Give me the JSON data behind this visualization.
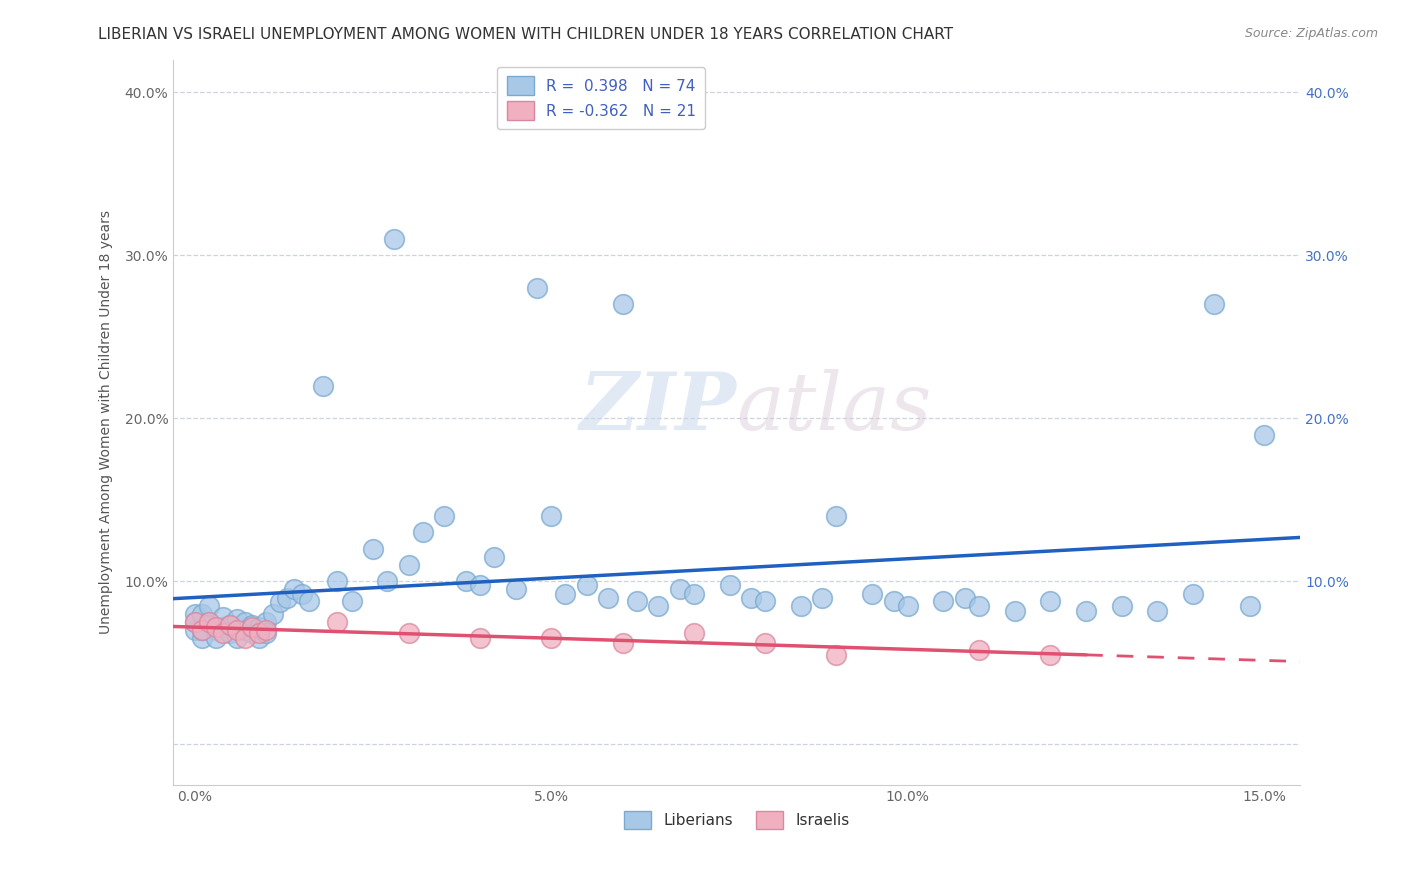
{
  "title": "LIBERIAN VS ISRAELI UNEMPLOYMENT AMONG WOMEN WITH CHILDREN UNDER 18 YEARS CORRELATION CHART",
  "source": "Source: ZipAtlas.com",
  "ylabel": "Unemployment Among Women with Children Under 18 years",
  "watermark_zip": "ZIP",
  "watermark_atlas": "atlas",
  "xlim": [
    -0.003,
    0.155
  ],
  "ylim": [
    -0.025,
    0.42
  ],
  "xticks": [
    0.0,
    0.05,
    0.1,
    0.15
  ],
  "xticklabels": [
    "0.0%",
    "5.0%",
    "10.0%",
    "15.0%"
  ],
  "yticks": [
    0.0,
    0.1,
    0.2,
    0.3,
    0.4
  ],
  "yticklabels_left": [
    "",
    "10.0%",
    "20.0%",
    "30.0%",
    "40.0%"
  ],
  "yticklabels_right": [
    "",
    "10.0%",
    "20.0%",
    "30.0%",
    "40.0%"
  ],
  "liberian_color": "#a8c8e8",
  "liberian_edge": "#7aaad0",
  "israeli_color": "#f0b0c0",
  "israeli_edge": "#d888a0",
  "trend_liberian_color": "#2060c0",
  "trend_israeli_color": "#e05070",
  "liberian_R": 0.398,
  "israeli_R": -0.362,
  "liberian_N": 74,
  "israeli_N": 21,
  "bottom_labels": [
    "Liberians",
    "Israelis"
  ],
  "grid_color": "#c8d0dc",
  "background_color": "#ffffff",
  "title_fontsize": 11,
  "axis_label_fontsize": 10,
  "tick_fontsize": 10,
  "legend_fontsize": 11,
  "liberian_x": [
    0.0,
    0.0,
    0.0,
    0.001,
    0.001,
    0.001,
    0.002,
    0.002,
    0.003,
    0.003,
    0.004,
    0.004,
    0.005,
    0.005,
    0.006,
    0.006,
    0.007,
    0.007,
    0.008,
    0.008,
    0.009,
    0.009,
    0.01,
    0.01,
    0.011,
    0.012,
    0.013,
    0.014,
    0.015,
    0.016,
    0.018,
    0.02,
    0.022,
    0.025,
    0.027,
    0.028,
    0.03,
    0.032,
    0.035,
    0.038,
    0.04,
    0.042,
    0.045,
    0.048,
    0.05,
    0.052,
    0.055,
    0.058,
    0.06,
    0.062,
    0.065,
    0.068,
    0.07,
    0.075,
    0.078,
    0.08,
    0.085,
    0.088,
    0.09,
    0.095,
    0.098,
    0.1,
    0.105,
    0.108,
    0.11,
    0.115,
    0.12,
    0.125,
    0.13,
    0.135,
    0.14,
    0.143,
    0.148,
    0.15
  ],
  "liberian_y": [
    0.07,
    0.08,
    0.075,
    0.065,
    0.07,
    0.08,
    0.075,
    0.085,
    0.07,
    0.065,
    0.072,
    0.078,
    0.068,
    0.073,
    0.077,
    0.065,
    0.07,
    0.075,
    0.068,
    0.073,
    0.065,
    0.072,
    0.075,
    0.068,
    0.08,
    0.087,
    0.09,
    0.095,
    0.092,
    0.088,
    0.22,
    0.1,
    0.088,
    0.12,
    0.1,
    0.31,
    0.11,
    0.13,
    0.14,
    0.1,
    0.098,
    0.115,
    0.095,
    0.28,
    0.14,
    0.092,
    0.098,
    0.09,
    0.27,
    0.088,
    0.085,
    0.095,
    0.092,
    0.098,
    0.09,
    0.088,
    0.085,
    0.09,
    0.14,
    0.092,
    0.088,
    0.085,
    0.088,
    0.09,
    0.085,
    0.082,
    0.088,
    0.082,
    0.085,
    0.082,
    0.092,
    0.27,
    0.085,
    0.19
  ],
  "israeli_x": [
    0.0,
    0.001,
    0.002,
    0.003,
    0.004,
    0.005,
    0.006,
    0.007,
    0.008,
    0.009,
    0.01,
    0.02,
    0.03,
    0.04,
    0.05,
    0.06,
    0.07,
    0.08,
    0.09,
    0.11,
    0.12
  ],
  "israeli_y": [
    0.075,
    0.07,
    0.075,
    0.072,
    0.068,
    0.073,
    0.07,
    0.065,
    0.072,
    0.068,
    0.07,
    0.075,
    0.068,
    0.065,
    0.065,
    0.062,
    0.068,
    0.062,
    0.055,
    0.058,
    0.055
  ]
}
